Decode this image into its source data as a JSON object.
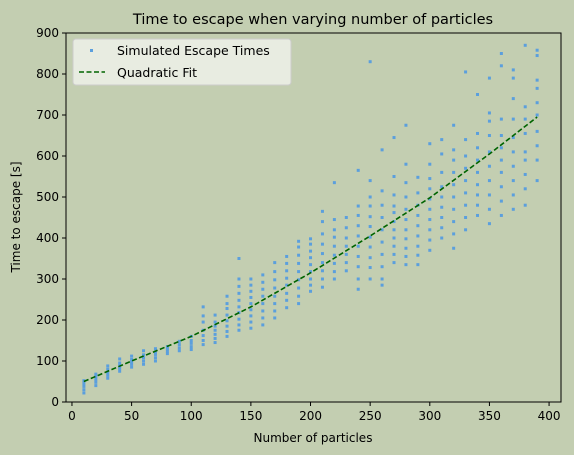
{
  "chart_data": {
    "type": "scatter",
    "title": "Time to escape when varying number of particles",
    "xlabel": "Number of particles",
    "ylabel": "Time to escape [s]",
    "xlim": [
      -5,
      410
    ],
    "ylim": [
      0,
      900
    ],
    "xticks": [
      0,
      50,
      100,
      150,
      200,
      250,
      300,
      350,
      400
    ],
    "yticks": [
      0,
      100,
      200,
      300,
      400,
      500,
      600,
      700,
      800,
      900
    ],
    "grid": false,
    "legend_position": "top-left",
    "colors": {
      "background": "#c3ceb1",
      "points": "#5b9fdd",
      "fit": "#006400",
      "legend_bg": "#eef1ea"
    },
    "series": [
      {
        "name": "Simulated Escape Times",
        "kind": "points",
        "groups": [
          {
            "x": 10,
            "y": [
              22,
              30,
              38,
              45,
              52
            ]
          },
          {
            "x": 20,
            "y": [
              40,
              48,
              55,
              62,
              68
            ]
          },
          {
            "x": 30,
            "y": [
              58,
              65,
              72,
              80,
              88
            ]
          },
          {
            "x": 40,
            "y": [
              75,
              82,
              88,
              95,
              105
            ]
          },
          {
            "x": 50,
            "y": [
              85,
              92,
              98,
              104,
              112
            ]
          },
          {
            "x": 60,
            "y": [
              92,
              100,
              108,
              115,
              125
            ]
          },
          {
            "x": 70,
            "y": [
              100,
              108,
              116,
              122,
              130
            ]
          },
          {
            "x": 80,
            "y": [
              118,
              124,
              130,
              135
            ]
          },
          {
            "x": 90,
            "y": [
              125,
              132,
              140,
              148
            ]
          },
          {
            "x": 100,
            "y": [
              128,
              135,
              143,
              150,
              160
            ]
          },
          {
            "x": 110,
            "y": [
              140,
              150,
              162,
              175,
              195,
              210,
              232
            ]
          },
          {
            "x": 120,
            "y": [
              145,
              155,
              165,
              175,
              185,
              195,
              212
            ]
          },
          {
            "x": 130,
            "y": [
              160,
              172,
              185,
              198,
              212,
              228,
              240,
              258
            ]
          },
          {
            "x": 140,
            "y": [
              175,
              188,
              202,
              218,
              232,
              248,
              265,
              282,
              300,
              350
            ]
          },
          {
            "x": 150,
            "y": [
              180,
              195,
              210,
              225,
              240,
              255,
              270,
              285,
              300
            ]
          },
          {
            "x": 160,
            "y": [
              188,
              205,
              222,
              240,
              258,
              275,
              292,
              310
            ]
          },
          {
            "x": 170,
            "y": [
              205,
              222,
              240,
              258,
              278,
              298,
              318,
              340
            ]
          },
          {
            "x": 180,
            "y": [
              230,
              248,
              265,
              285,
              302,
              320,
              338,
              355
            ]
          },
          {
            "x": 190,
            "y": [
              240,
              258,
              278,
              298,
              318,
              338,
              358,
              378,
              392
            ]
          },
          {
            "x": 200,
            "y": [
              270,
              285,
              300,
              318,
              335,
              352,
              368,
              385,
              398
            ]
          },
          {
            "x": 210,
            "y": [
              280,
              300,
              320,
              340,
              362,
              385,
              410,
              440,
              465
            ]
          },
          {
            "x": 220,
            "y": [
              300,
              318,
              338,
              358,
              380,
              402,
              420,
              445,
              535
            ]
          },
          {
            "x": 230,
            "y": [
              320,
              340,
              360,
              380,
              400,
              425,
              450
            ]
          },
          {
            "x": 240,
            "y": [
              275,
              300,
              330,
              355,
              380,
              405,
              430,
              455,
              478,
              565
            ]
          },
          {
            "x": 250,
            "y": [
              300,
              328,
              352,
              378,
              402,
              428,
              452,
              478,
              500,
              540,
              830
            ]
          },
          {
            "x": 260,
            "y": [
              285,
              300,
              330,
              360,
              390,
              420,
              450,
              480,
              515,
              615
            ]
          },
          {
            "x": 270,
            "y": [
              340,
              360,
              380,
              400,
              420,
              440,
              462,
              478,
              505,
              550,
              645
            ]
          },
          {
            "x": 280,
            "y": [
              335,
              355,
              375,
              398,
              420,
              445,
              470,
              500,
              535,
              580,
              675
            ]
          },
          {
            "x": 290,
            "y": [
              335,
              358,
              380,
              405,
              430,
              455,
              480,
              510,
              548
            ]
          },
          {
            "x": 300,
            "y": [
              370,
              395,
              420,
              445,
              470,
              495,
              520,
              545,
              580,
              630
            ]
          },
          {
            "x": 310,
            "y": [
              400,
              425,
              450,
              475,
              500,
              525,
              560,
              605,
              640
            ]
          },
          {
            "x": 320,
            "y": [
              375,
              410,
              440,
              470,
              500,
              530,
              560,
              590,
              615,
              675
            ]
          },
          {
            "x": 330,
            "y": [
              420,
              450,
              480,
              510,
              540,
              570,
              600,
              640,
              805
            ]
          },
          {
            "x": 340,
            "y": [
              455,
              480,
              505,
              530,
              560,
              590,
              620,
              655,
              750
            ]
          },
          {
            "x": 350,
            "y": [
              435,
              470,
              505,
              540,
              575,
              610,
              650,
              685,
              705,
              790
            ]
          },
          {
            "x": 360,
            "y": [
              455,
              490,
              525,
              560,
              590,
              620,
              650,
              690,
              820,
              850
            ]
          },
          {
            "x": 370,
            "y": [
              470,
              505,
              540,
              575,
              610,
              645,
              690,
              740,
              790,
              810
            ]
          },
          {
            "x": 380,
            "y": [
              480,
              520,
              555,
              590,
              610,
              655,
              690,
              720,
              870
            ]
          },
          {
            "x": 390,
            "y": [
              540,
              590,
              625,
              660,
              700,
              730,
              765,
              785,
              845,
              858
            ]
          }
        ]
      },
      {
        "name": "Quadratic Fit",
        "kind": "line",
        "x": [
          10,
          50,
          100,
          150,
          200,
          250,
          300,
          350,
          390
        ],
        "y": [
          50,
          100,
          160,
          232,
          315,
          405,
          498,
          605,
          695
        ]
      }
    ]
  }
}
